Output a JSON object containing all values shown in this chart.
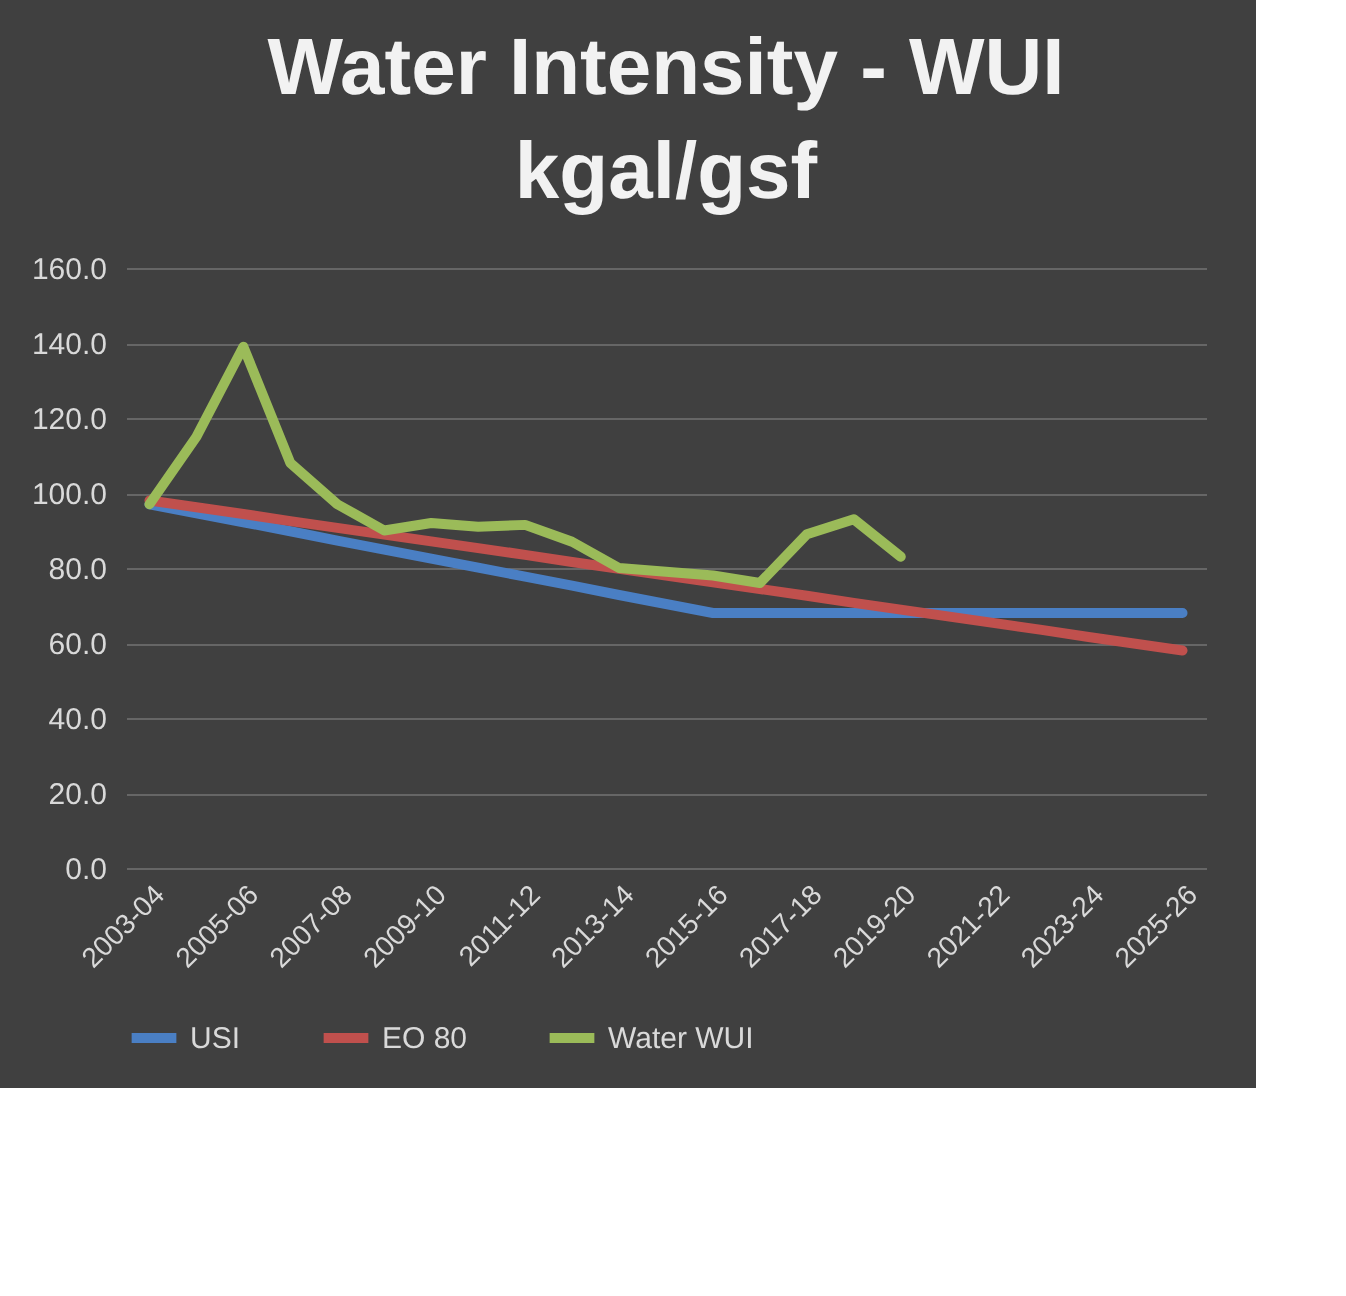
{
  "chart_data": {
    "type": "line",
    "title": [
      "Water Intensity - WUI",
      "kgal/gsf"
    ],
    "categories": [
      "2003-04",
      null,
      "2005-06",
      null,
      "2007-08",
      null,
      "2009-10",
      null,
      "2011-12",
      null,
      "2013-14",
      null,
      "2015-16",
      null,
      "2017-18",
      null,
      "2019-20",
      null,
      "2021-22",
      null,
      "2023-24",
      null,
      "2025-26"
    ],
    "series": [
      {
        "name": "USI",
        "color": "#4a7fc4",
        "values": [
          97,
          94.6,
          92.2,
          89.8,
          87.3,
          84.9,
          82.5,
          80.1,
          77.7,
          75.3,
          72.8,
          70.4,
          68,
          68,
          68,
          68,
          68,
          68,
          68,
          68,
          68,
          68,
          68
        ]
      },
      {
        "name": "EO 80",
        "color": "#c0504d",
        "values": [
          98,
          96.2,
          94.4,
          92.5,
          90.7,
          88.9,
          87.1,
          85.3,
          83.5,
          81.6,
          79.8,
          78,
          76.2,
          74.4,
          72.6,
          70.7,
          68.9,
          67.1,
          65.3,
          63.5,
          61.6,
          59.8,
          58
        ]
      },
      {
        "name": "Water WUI",
        "color": "#9bbb59",
        "values": [
          97,
          115,
          139,
          108,
          97,
          90,
          92,
          91,
          91.5,
          87,
          80,
          79,
          78,
          76,
          89,
          93,
          83,
          null,
          null,
          null,
          null,
          null,
          null
        ]
      }
    ],
    "ylim": [
      0,
      160
    ],
    "yticks": [
      {
        "value": 0,
        "label": "0.0"
      },
      {
        "value": 20,
        "label": "20.0"
      },
      {
        "value": 40,
        "label": "40.0"
      },
      {
        "value": 60,
        "label": "60.0"
      },
      {
        "value": 80,
        "label": "80.0"
      },
      {
        "value": 100,
        "label": "100.0"
      },
      {
        "value": 120,
        "label": "120.0"
      },
      {
        "value": 140,
        "label": "140.0"
      },
      {
        "value": 160,
        "label": "160.0"
      }
    ],
    "grid": "y",
    "legend": "bottom",
    "marker": "none",
    "line_style": "solid"
  }
}
